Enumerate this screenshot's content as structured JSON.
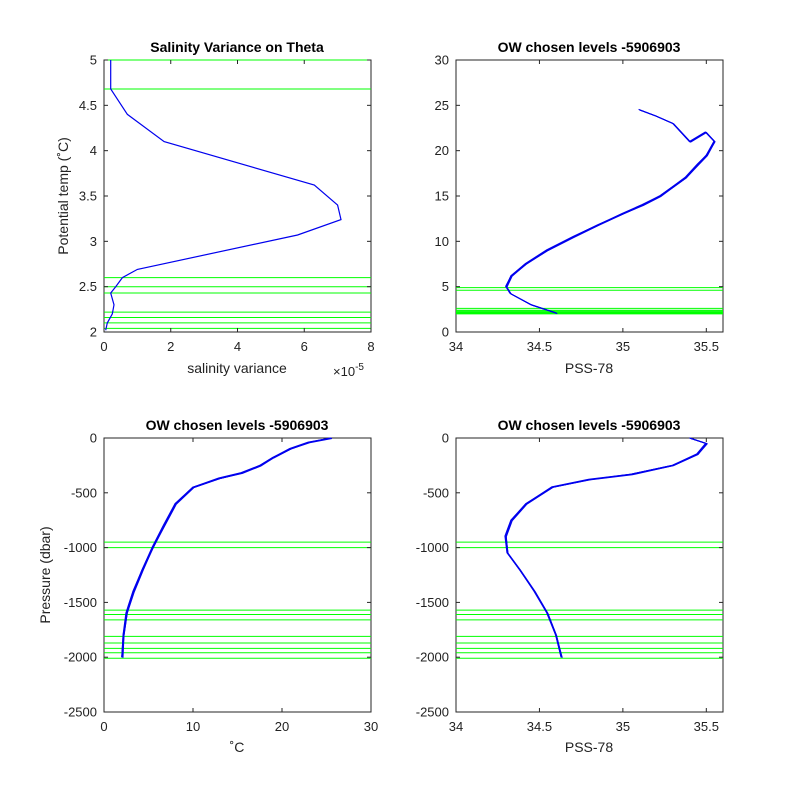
{
  "colors": {
    "profile": "#0000ee",
    "levels": "#00ff00",
    "axes": "#262626"
  },
  "chart_data": [
    {
      "type": "line",
      "title": "Salinity Variance on Theta",
      "xlabel": "salinity variance",
      "ylabel": "Potential temp (˚C)",
      "x_exponent_label": "×10",
      "x_exponent_power": "-5",
      "xlim": [
        0,
        8
      ],
      "ylim": [
        2,
        5
      ],
      "xticks": [
        0,
        2,
        4,
        6,
        8
      ],
      "xtick_labels": [
        "0",
        "2",
        "4",
        "6",
        "8"
      ],
      "yticks": [
        2,
        2.5,
        3,
        3.5,
        4,
        4.5,
        5
      ],
      "ytick_labels": [
        "2",
        "2.5",
        "3",
        "3.5",
        "4",
        "4.5",
        "5"
      ],
      "series": [
        {
          "x": [
            0.2,
            0.2,
            0.7,
            1.8,
            6.3,
            7.0,
            7.1,
            5.8,
            1.0,
            0.55,
            0.35,
            0.2,
            0.3,
            0.25,
            0.1,
            0.05
          ],
          "y": [
            5.0,
            4.68,
            4.4,
            4.1,
            3.62,
            3.4,
            3.24,
            3.07,
            2.69,
            2.6,
            2.5,
            2.43,
            2.3,
            2.2,
            2.1,
            2.02
          ]
        }
      ],
      "levels": [
        5.0,
        4.68,
        2.6,
        2.5,
        2.43,
        2.22,
        2.16,
        2.1,
        2.04
      ]
    },
    {
      "type": "line",
      "title": "OW chosen levels -5906903",
      "xlabel": "PSS-78",
      "ylabel": "",
      "xlim": [
        34,
        35.6
      ],
      "ylim": [
        0,
        30
      ],
      "xticks": [
        34,
        34.5,
        35,
        35.5
      ],
      "xtick_labels": [
        "34",
        "34.5",
        "35",
        "35.5"
      ],
      "yticks": [
        0,
        5,
        10,
        15,
        20,
        25,
        30
      ],
      "ytick_labels": [
        "0",
        "5",
        "10",
        "15",
        "20",
        "25",
        "30"
      ],
      "series": [
        {
          "x": [
            34.6,
            34.45,
            34.33,
            34.3,
            34.33,
            34.42,
            34.55,
            34.7,
            34.85,
            35.0,
            35.12,
            35.22,
            35.3,
            35.38,
            35.45,
            35.5,
            35.55,
            35.5,
            35.4,
            35.3,
            35.2,
            35.1
          ],
          "y": [
            2.1,
            3.0,
            4.2,
            5.0,
            6.2,
            7.5,
            9.0,
            10.5,
            11.8,
            13.0,
            14.0,
            15.0,
            16.0,
            17.0,
            18.5,
            19.5,
            21.0,
            22.0,
            21.0,
            23.0,
            23.8,
            24.5
          ]
        }
      ],
      "levels": [
        4.9,
        4.6,
        2.6,
        2.4,
        2.3,
        2.2,
        2.1,
        2.0
      ]
    },
    {
      "type": "line",
      "title": "OW chosen levels -5906903",
      "xlabel": "˚C",
      "ylabel": "Pressure (dbar)",
      "xlim": [
        0,
        30
      ],
      "ylim": [
        -2500,
        0
      ],
      "xticks": [
        0,
        10,
        20,
        30
      ],
      "xtick_labels": [
        "0",
        "10",
        "20",
        "30"
      ],
      "yticks": [
        0,
        -500,
        -1000,
        -1500,
        -2000,
        -2500
      ],
      "ytick_labels": [
        "0",
        "-500",
        "-1000",
        "-1500",
        "-2000",
        "-2500"
      ],
      "series": [
        {
          "x": [
            2.0,
            2.2,
            2.6,
            3.3,
            4.3,
            5.5,
            6.8,
            8.0,
            10.0,
            13.0,
            15.5,
            17.5,
            19.0,
            21.0,
            23.0,
            25.5
          ],
          "y": [
            -2000,
            -1800,
            -1600,
            -1400,
            -1200,
            -1000,
            -800,
            -600,
            -450,
            -370,
            -320,
            -250,
            -180,
            -100,
            -40,
            0
          ]
        }
      ],
      "levels": [
        -950,
        -1000,
        -1570,
        -1610,
        -1660,
        -1810,
        -1870,
        -1920,
        -1960,
        -2010
      ]
    },
    {
      "type": "line",
      "title": "OW chosen levels -5906903",
      "xlabel": "PSS-78",
      "ylabel": "",
      "xlim": [
        34,
        35.6
      ],
      "ylim": [
        -2500,
        0
      ],
      "xticks": [
        34,
        34.5,
        35,
        35.5
      ],
      "xtick_labels": [
        "34",
        "34.5",
        "35",
        "35.5"
      ],
      "yticks": [
        0,
        -500,
        -1000,
        -1500,
        -2000,
        -2500
      ],
      "ytick_labels": [
        "0",
        "-500",
        "-1000",
        "-1500",
        "-2000",
        "-2500"
      ],
      "series": [
        {
          "x": [
            34.63,
            34.6,
            34.55,
            34.47,
            34.38,
            34.31,
            34.3,
            34.33,
            34.42,
            34.58,
            34.8,
            35.05,
            35.3,
            35.45,
            35.5,
            35.4
          ],
          "y": [
            -2000,
            -1800,
            -1600,
            -1400,
            -1200,
            -1050,
            -900,
            -750,
            -600,
            -450,
            -380,
            -330,
            -250,
            -150,
            -50,
            0
          ]
        }
      ],
      "levels": [
        -950,
        -1000,
        -1570,
        -1610,
        -1660,
        -1810,
        -1870,
        -1920,
        -1960,
        -2010
      ]
    }
  ]
}
